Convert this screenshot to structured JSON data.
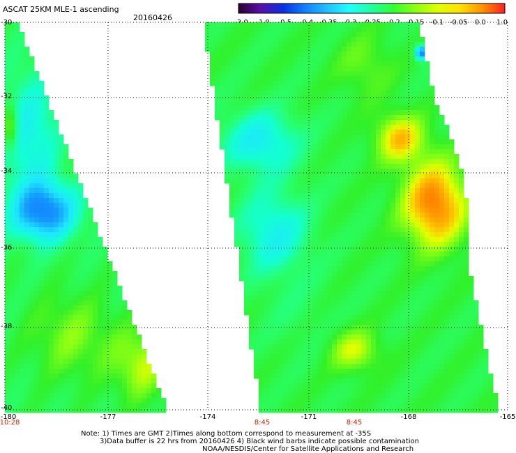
{
  "header": {
    "title": "ASCAT 25KM MLE-1 ascending",
    "date": "20160426"
  },
  "colorbar": {
    "tick_labels": [
      "-3.0",
      "-1.0",
      "-0.5",
      "-0.4",
      "-0.35",
      "-0.3",
      "-0.25",
      "-0.2",
      "-0.15",
      "-0.1",
      "-0.05",
      "0.0",
      "1.0"
    ],
    "colors": [
      "#2a0030",
      "#5a10a8",
      "#0830e0",
      "#1080ff",
      "#20c0ff",
      "#20ffff",
      "#20ffa0",
      "#30ff30",
      "#90ff10",
      "#e0ff00",
      "#ffe000",
      "#ff9000",
      "#ff2020"
    ]
  },
  "map": {
    "lat_labels": [
      "-30",
      "-32",
      "-34",
      "-36",
      "-38",
      "-40"
    ],
    "lon_labels": [
      "-180",
      "-177",
      "-174",
      "-171",
      "-168",
      "-165"
    ],
    "times": [
      "10:28",
      "8:45",
      "8:45"
    ]
  },
  "footer": {
    "line1": "Note: 1) Times are GMT 2)Times along bottom correspond to measurement at -35S",
    "line2": "3)Data buffer is 22 hrs from 20160426 4) Black wind barbs indicate possible contamination",
    "line3": "NOAA/NESDIS/Center for Satellite Applications and Research"
  }
}
